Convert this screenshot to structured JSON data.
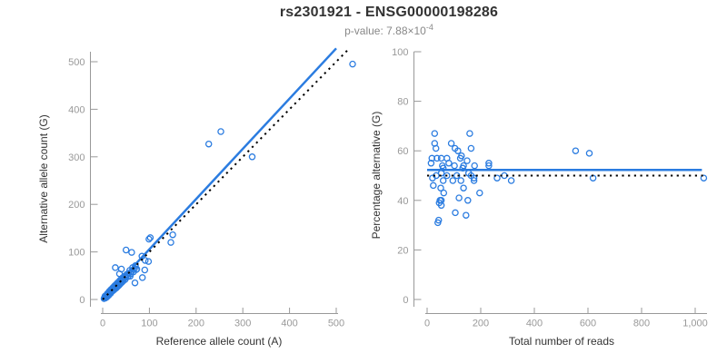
{
  "header": {
    "title": "rs2301921 - ENSG00000198286",
    "subtitle": {
      "prefix": "p-value: 7.88×10",
      "exponent": "-4"
    }
  },
  "colors": {
    "accent": "#2b7ce0",
    "axis": "#999999",
    "tick_label": "#999999",
    "axis_title": "#333333",
    "dotted_line": "#000000",
    "background": "#ffffff"
  },
  "chart_data": [
    {
      "type": "scatter",
      "name": "allele-counts-scatter",
      "xlabel": "Reference allele count (A)",
      "ylabel": "Alternative allele count (G)",
      "xlim": [
        0,
        540
      ],
      "ylim": [
        0,
        540
      ],
      "grid": false,
      "xticks": [
        0,
        100,
        200,
        300,
        400,
        500
      ],
      "xtick_labels": [
        "0",
        "100",
        "200",
        "300",
        "400",
        "500"
      ],
      "yticks": [
        0,
        100,
        200,
        300,
        400,
        500
      ],
      "ytick_labels": [
        "0",
        "100",
        "200",
        "300",
        "400",
        "500"
      ],
      "lines": [
        {
          "name": "regression-line",
          "style": "solid",
          "x1": 0,
          "y1": 0,
          "x2": 500,
          "y2": 528
        },
        {
          "name": "identity-line",
          "style": "dotted",
          "x1": 0,
          "y1": 0,
          "x2": 528,
          "y2": 528
        }
      ],
      "points": [
        [
          3,
          2
        ],
        [
          4,
          4
        ],
        [
          5,
          7
        ],
        [
          6,
          3
        ],
        [
          7,
          6
        ],
        [
          8,
          9
        ],
        [
          9,
          5
        ],
        [
          10,
          8
        ],
        [
          10,
          12
        ],
        [
          11,
          10
        ],
        [
          12,
          14
        ],
        [
          13,
          9
        ],
        [
          13,
          13
        ],
        [
          14,
          17
        ],
        [
          15,
          12
        ],
        [
          16,
          16
        ],
        [
          17,
          13
        ],
        [
          17,
          20
        ],
        [
          18,
          16
        ],
        [
          19,
          22
        ],
        [
          20,
          17
        ],
        [
          21,
          21
        ],
        [
          22,
          25
        ],
        [
          23,
          19
        ],
        [
          24,
          23
        ],
        [
          25,
          28
        ],
        [
          26,
          22
        ],
        [
          27,
          26
        ],
        [
          28,
          31
        ],
        [
          29,
          24
        ],
        [
          30,
          29
        ],
        [
          31,
          34
        ],
        [
          32,
          27
        ],
        [
          33,
          32
        ],
        [
          34,
          37
        ],
        [
          35,
          30
        ],
        [
          36,
          35
        ],
        [
          37,
          40
        ],
        [
          38,
          33
        ],
        [
          39,
          38
        ],
        [
          40,
          43
        ],
        [
          41,
          36
        ],
        [
          42,
          41
        ],
        [
          43,
          46
        ],
        [
          44,
          39
        ],
        [
          45,
          44
        ],
        [
          47,
          49
        ],
        [
          48,
          42
        ],
        [
          50,
          47
        ],
        [
          52,
          53
        ],
        [
          54,
          48
        ],
        [
          56,
          55
        ],
        [
          58,
          61
        ],
        [
          60,
          54
        ],
        [
          62,
          59
        ],
        [
          64,
          67
        ],
        [
          66,
          58
        ],
        [
          68,
          65
        ],
        [
          70,
          71
        ],
        [
          72,
          63
        ],
        [
          27,
          67
        ],
        [
          40,
          64
        ],
        [
          36,
          54
        ],
        [
          50,
          104
        ],
        [
          62,
          99
        ],
        [
          59,
          49
        ],
        [
          73,
          64
        ],
        [
          84,
          91
        ],
        [
          85,
          46
        ],
        [
          90,
          62
        ],
        [
          91,
          82
        ],
        [
          98,
          80
        ],
        [
          69,
          35
        ],
        [
          99,
          127
        ],
        [
          102,
          130
        ],
        [
          146,
          120
        ],
        [
          150,
          136
        ],
        [
          227,
          327
        ],
        [
          253,
          353
        ],
        [
          320,
          300
        ],
        [
          535,
          495
        ]
      ]
    },
    {
      "type": "scatter",
      "name": "percentage-vs-reads-scatter",
      "xlabel": "Total number of reads",
      "ylabel": "Percentage alternative (G)",
      "xlim": [
        0,
        1045
      ],
      "ylim": [
        0,
        100
      ],
      "grid": false,
      "xticks": [
        0,
        200,
        400,
        600,
        800,
        1000
      ],
      "xtick_labels": [
        "0",
        "200",
        "400",
        "600",
        "800",
        "1,000"
      ],
      "yticks": [
        0,
        20,
        40,
        60,
        80,
        100
      ],
      "ytick_labels": [
        "0",
        "20",
        "40",
        "60",
        "80",
        "100"
      ],
      "lines": [
        {
          "name": "mean-percentage-line",
          "style": "solid",
          "x1": 0,
          "y1": 52.3,
          "x2": 1025,
          "y2": 52.3
        },
        {
          "name": "expected-50pct-line",
          "style": "dotted",
          "x1": 0,
          "y1": 50,
          "x2": 1040,
          "y2": 50
        }
      ],
      "points": [
        [
          28,
          67
        ],
        [
          159,
          67
        ],
        [
          28,
          63
        ],
        [
          90,
          63
        ],
        [
          33,
          61
        ],
        [
          104,
          61
        ],
        [
          115,
          60
        ],
        [
          164,
          61
        ],
        [
          18,
          57
        ],
        [
          37,
          57
        ],
        [
          53,
          57
        ],
        [
          74,
          57
        ],
        [
          124,
          57
        ],
        [
          128,
          58
        ],
        [
          149,
          56
        ],
        [
          15,
          55
        ],
        [
          57,
          54
        ],
        [
          81,
          55
        ],
        [
          102,
          54
        ],
        [
          133,
          53
        ],
        [
          136,
          54
        ],
        [
          230,
          55
        ],
        [
          230,
          54
        ],
        [
          60,
          53
        ],
        [
          53,
          51
        ],
        [
          34,
          50
        ],
        [
          74,
          50
        ],
        [
          111,
          50
        ],
        [
          155,
          51
        ],
        [
          177,
          54
        ],
        [
          20,
          49
        ],
        [
          60,
          48
        ],
        [
          96,
          48
        ],
        [
          126,
          48
        ],
        [
          164,
          50
        ],
        [
          175,
          49
        ],
        [
          175,
          48
        ],
        [
          261,
          49
        ],
        [
          288,
          50
        ],
        [
          23,
          46
        ],
        [
          51,
          45
        ],
        [
          136,
          45
        ],
        [
          314,
          48
        ],
        [
          196,
          43
        ],
        [
          119,
          41
        ],
        [
          62,
          43
        ],
        [
          48,
          40
        ],
        [
          53,
          40
        ],
        [
          152,
          40
        ],
        [
          45,
          39
        ],
        [
          53,
          38
        ],
        [
          145,
          34
        ],
        [
          105,
          35
        ],
        [
          43,
          32
        ],
        [
          40,
          31
        ],
        [
          554,
          60
        ],
        [
          605,
          59
        ],
        [
          619,
          49
        ],
        [
          1032,
          49
        ]
      ]
    }
  ]
}
